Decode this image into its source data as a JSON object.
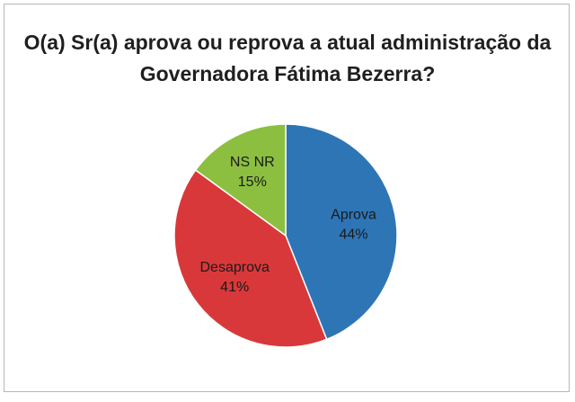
{
  "chart_data": {
    "type": "pie",
    "title": "O(a) Sr(a) aprova ou reprova a atual administração da Governadora Fátima Bezerra?",
    "title_lines": [
      "O(a) Sr(a) aprova ou reprova a atual administração da",
      "Governadora Fátima Bezerra?"
    ],
    "slices": [
      {
        "name": "Aprova",
        "value": 44,
        "label": "44%",
        "color": "#2e75b6"
      },
      {
        "name": "Desaprova",
        "value": 41,
        "label": "41%",
        "color": "#d9383a"
      },
      {
        "name": "NS NR",
        "value": 15,
        "label": "15%",
        "color": "#8cbf3f"
      }
    ],
    "legend": "none",
    "start": "top",
    "direction": "clockwise"
  }
}
